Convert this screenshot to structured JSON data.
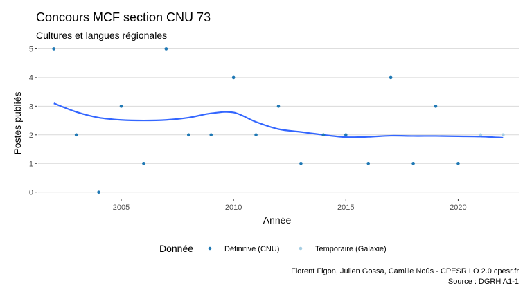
{
  "chart_data": {
    "type": "scatter",
    "title": "Concours MCF section CNU 73",
    "subtitle": "Cultures et langues régionales",
    "xlabel": "Année",
    "ylabel": "Postes publiés",
    "xlim": [
      2001.3,
      2022.7
    ],
    "ylim": [
      -0.2,
      5.3
    ],
    "x_ticks": [
      2005,
      2010,
      2015,
      2020
    ],
    "y_ticks": [
      0,
      1,
      2,
      3,
      4,
      5
    ],
    "grid": true,
    "legend": {
      "title": "Donnée",
      "position": "bottom",
      "entries": [
        {
          "label": "Définitive (CNU)",
          "color": "#1f78b4"
        },
        {
          "label": "Temporaire (Galaxie)",
          "color": "#a6cee3"
        }
      ]
    },
    "series": [
      {
        "name": "Définitive (CNU)",
        "color": "#1f78b4",
        "x": [
          2002,
          2003,
          2004,
          2005,
          2006,
          2007,
          2008,
          2009,
          2010,
          2011,
          2012,
          2013,
          2014,
          2015,
          2016,
          2017,
          2018,
          2019,
          2020
        ],
        "y": [
          5,
          2,
          0,
          3,
          1,
          5,
          2,
          2,
          4,
          2,
          3,
          1,
          2,
          2,
          1,
          4,
          1,
          3,
          1
        ]
      },
      {
        "name": "Temporaire (Galaxie)",
        "color": "#a6cee3",
        "x": [
          2021,
          2022
        ],
        "y": [
          2,
          2
        ]
      }
    ],
    "smooth": {
      "color": "#3366ff",
      "x": [
        2002,
        2003,
        2004,
        2005,
        2006,
        2007,
        2008,
        2009,
        2010,
        2011,
        2012,
        2013,
        2014,
        2015,
        2016,
        2017,
        2018,
        2019,
        2020,
        2021,
        2022
      ],
      "y": [
        3.1,
        2.8,
        2.6,
        2.52,
        2.5,
        2.52,
        2.6,
        2.75,
        2.78,
        2.45,
        2.2,
        2.1,
        2.0,
        1.92,
        1.93,
        1.97,
        1.96,
        1.96,
        1.95,
        1.94,
        1.9
      ]
    },
    "caption": [
      "Florent Figon, Julien Gossa, Camille Noûs - CPESR LO 2.0 cpesr.fr",
      "Source : DGRH A1-1"
    ]
  }
}
